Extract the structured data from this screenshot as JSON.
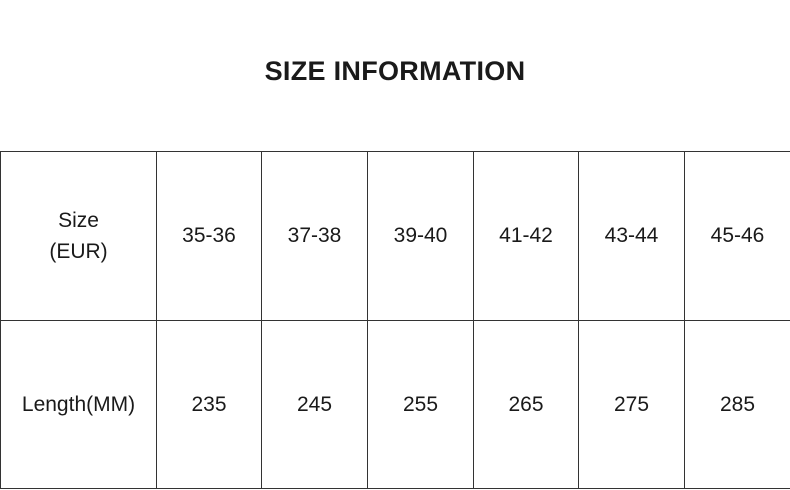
{
  "title": "SIZE INFORMATION",
  "table": {
    "row_headers": [
      "Size",
      "(EUR)",
      "Length(MM)"
    ],
    "sizes": [
      "35-36",
      "37-38",
      "39-40",
      "41-42",
      "43-44",
      "45-46"
    ],
    "lengths": [
      "235",
      "245",
      "255",
      "265",
      "275",
      "285"
    ]
  }
}
